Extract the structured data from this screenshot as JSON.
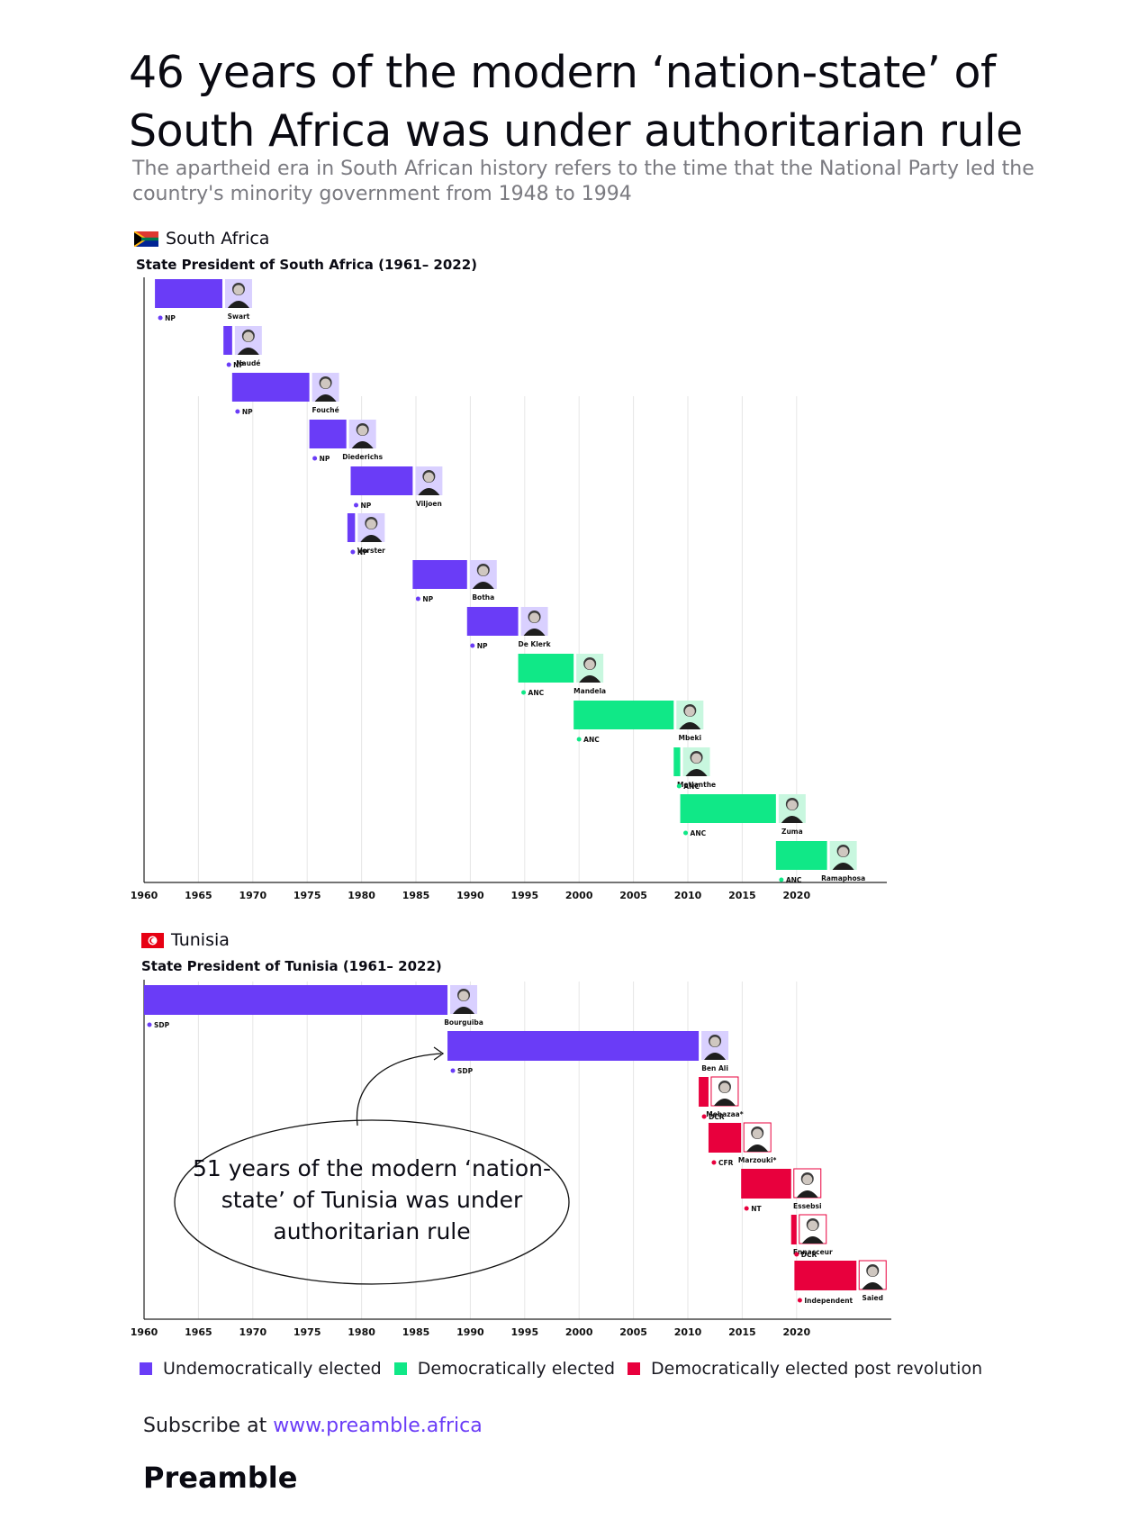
{
  "header": {
    "title": "46 years of the modern ‘nation-state’ of South Africa was under authoritarian rule",
    "subtitle": "The apartheid era in South African history refers to the time that the National Party led the country's minority government from 1948 to 1994"
  },
  "colors": {
    "undemocratic": "#6a3cf7",
    "democratic": "#10e887",
    "post_revolution": "#e8003d",
    "link": "#6a3cf7"
  },
  "sections": {
    "south_africa": {
      "country": "South Africa",
      "flag_icon": "south-africa-flag-icon"
    },
    "tunisia": {
      "country": "Tunisia",
      "flag_icon": "tunisia-flag-icon"
    }
  },
  "note": {
    "text": "51 years of the modern ‘nation-state’ of Tunisia was under authoritarian rule"
  },
  "legend": [
    {
      "label": "Undemocratically elected",
      "key": "undemocratic"
    },
    {
      "label": "Democratically elected",
      "key": "democratic"
    },
    {
      "label": "Democratically elected post revolution",
      "key": "post_revolution"
    }
  ],
  "footer": {
    "subscribe_prefix": "Subscribe at ",
    "subscribe_link": "www.preamble.africa",
    "brand": "Preamble"
  },
  "chart_data": [
    {
      "type": "gantt",
      "title": "State President of South Africa (1961– 2022)",
      "x_ticks": [
        1960,
        1965,
        1970,
        1975,
        1980,
        1985,
        1990,
        1995,
        2000,
        2005,
        2010,
        2015,
        2020
      ],
      "xlim": [
        1960,
        2027
      ],
      "series": [
        {
          "name": "Swart",
          "party": "NP",
          "start": 1961,
          "end": 1967.2,
          "status": "undemocratic"
        },
        {
          "name": "Naudé",
          "party": "NP",
          "start": 1967.3,
          "end": 1968.1,
          "status": "undemocratic"
        },
        {
          "name": "Fouché",
          "party": "NP",
          "start": 1968.1,
          "end": 1975.2,
          "status": "undemocratic"
        },
        {
          "name": "Diederichs",
          "party": "NP",
          "start": 1975.2,
          "end": 1978.6,
          "status": "undemocratic"
        },
        {
          "name": "Viljoen",
          "party": "NP",
          "start": 1979,
          "end": 1984.7,
          "status": "undemocratic"
        },
        {
          "name": "Vorster",
          "party": "NP",
          "start": 1978.7,
          "end": 1979.4,
          "status": "undemocratic"
        },
        {
          "name": "Botha",
          "party": "NP",
          "start": 1984.7,
          "end": 1989.7,
          "status": "undemocratic"
        },
        {
          "name": "De Klerk",
          "party": "NP",
          "start": 1989.7,
          "end": 1994.4,
          "status": "undemocratic"
        },
        {
          "name": "Mandela",
          "party": "ANC",
          "start": 1994.4,
          "end": 1999.5,
          "status": "democratic"
        },
        {
          "name": "Mbeki",
          "party": "ANC",
          "start": 1999.5,
          "end": 2008.7,
          "status": "democratic"
        },
        {
          "name": "Motlanthe",
          "party": "ANC",
          "start": 2008.7,
          "end": 2009.3,
          "status": "democratic"
        },
        {
          "name": "Zuma",
          "party": "ANC",
          "start": 2009.3,
          "end": 2018.1,
          "status": "democratic"
        },
        {
          "name": "Ramaphosa",
          "party": "ANC",
          "start": 2018.1,
          "end": 2022.8,
          "status": "democratic"
        }
      ]
    },
    {
      "type": "gantt",
      "title": "State President of Tunisia (1961– 2022)",
      "x_ticks": [
        1960,
        1965,
        1970,
        1975,
        1980,
        1985,
        1990,
        1995,
        2000,
        2005,
        2010,
        2015,
        2020
      ],
      "xlim": [
        1960,
        2027
      ],
      "series": [
        {
          "name": "Bourguiba",
          "party": "SDP",
          "start": 1960,
          "end": 1987.9,
          "status": "undemocratic"
        },
        {
          "name": "Ben Ali",
          "party": "SDP",
          "start": 1987.9,
          "end": 2011,
          "status": "undemocratic"
        },
        {
          "name": "Mebazaa*",
          "party": "DCR",
          "start": 2011,
          "end": 2011.9,
          "status": "post_revolution"
        },
        {
          "name": "Marzouki*",
          "party": "CFR",
          "start": 2011.9,
          "end": 2014.9,
          "status": "post_revolution"
        },
        {
          "name": "Essebsi",
          "party": "NT",
          "start": 2014.9,
          "end": 2019.5,
          "status": "post_revolution"
        },
        {
          "name": "Ennacceur",
          "party": "DCR",
          "start": 2019.5,
          "end": 2019.8,
          "status": "post_revolution"
        },
        {
          "name": "Saied",
          "party": "Independent",
          "start": 2019.8,
          "end": 2025.5,
          "status": "post_revolution"
        }
      ]
    }
  ]
}
